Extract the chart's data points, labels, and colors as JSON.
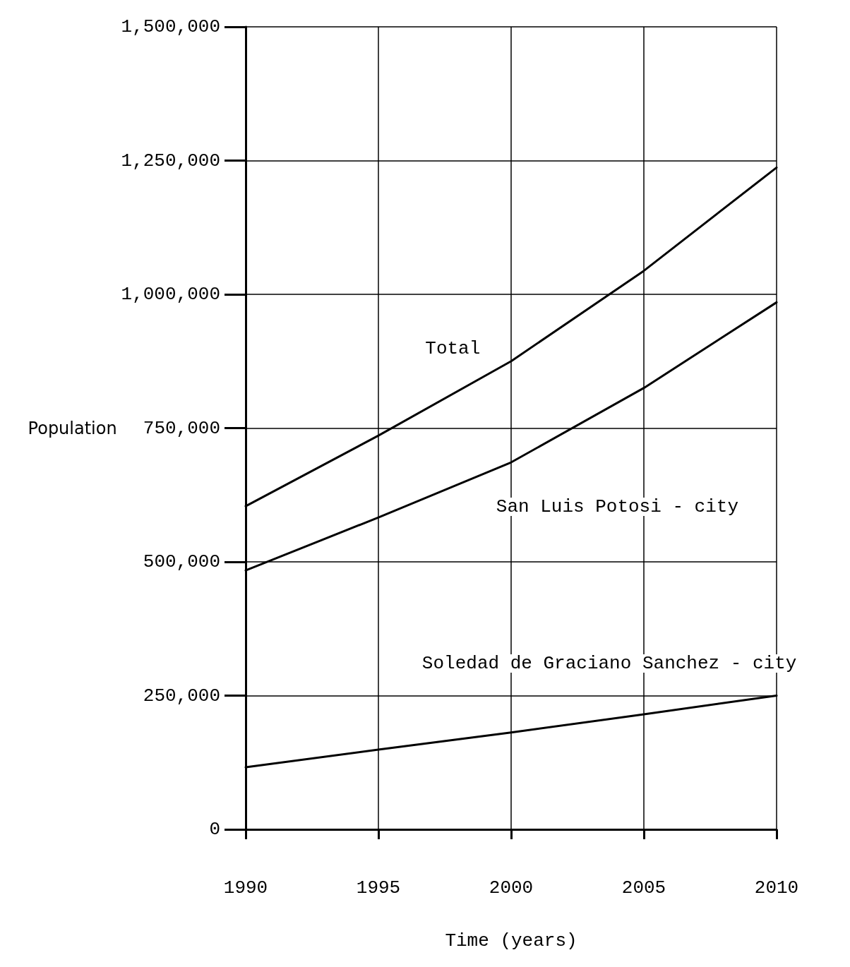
{
  "chart_data": {
    "type": "line",
    "xlabel": "Time (years)",
    "ylabel": "Population",
    "x": [
      1990,
      1995,
      2000,
      2005,
      2010
    ],
    "series": [
      {
        "name": "Total",
        "color": "#000000",
        "values": [
          604000,
          736000,
          875000,
          1044000,
          1237000
        ]
      },
      {
        "name": "San Luis Potosi - city",
        "color": "#000000",
        "values": [
          484000,
          583000,
          686000,
          825000,
          985000
        ]
      },
      {
        "name": "Soledad de Graciano Sanchez - city",
        "color": "#000000",
        "values": [
          116000,
          149000,
          181000,
          215000,
          250000
        ]
      }
    ],
    "xlim": [
      1990,
      2010
    ],
    "xticks": [
      1990,
      1995,
      2000,
      2005,
      2010
    ],
    "ylim": [
      0,
      1500000
    ],
    "yticks": [
      0,
      {
        "value": 250000,
        "label": "250,000"
      },
      {
        "value": 500000,
        "label": "500,000"
      },
      {
        "value": 750000,
        "label": "750,000"
      },
      {
        "value": 1000000,
        "label": "1,000,000"
      },
      {
        "value": 1250000,
        "label": "1,250,000"
      },
      {
        "value": 1500000,
        "label": "1,500,000"
      }
    ],
    "grid": true,
    "legend": false,
    "marker": "none",
    "line_style": "solid"
  }
}
